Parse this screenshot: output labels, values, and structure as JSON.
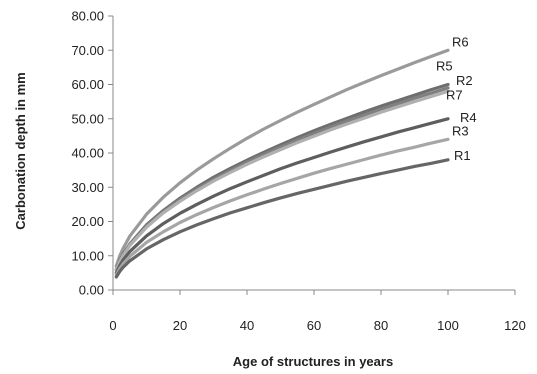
{
  "chart_data": {
    "type": "line",
    "title": "",
    "xlabel": "Age of structures in years",
    "ylabel": "Carbonation depth in mm",
    "xlim": [
      0,
      120
    ],
    "ylim": [
      0,
      80
    ],
    "x_ticks": [
      "0",
      "20",
      "40",
      "60",
      "80",
      "100",
      "120"
    ],
    "y_ticks": [
      "0.00",
      "10.00",
      "20.00",
      "30.00",
      "40.00",
      "50.00",
      "60.00",
      "70.00",
      "80.00"
    ],
    "grid": false,
    "legend": "none",
    "x": [
      1,
      2,
      3,
      5,
      10,
      15,
      20,
      25,
      30,
      35,
      40,
      45,
      50,
      55,
      60,
      65,
      70,
      75,
      80,
      85,
      90,
      95,
      100
    ],
    "series": [
      {
        "name": "R6",
        "color": "#9a9a9a",
        "values": [
          7.0,
          9.9,
          12.1,
          15.7,
          22.1,
          27.1,
          31.3,
          35.0,
          38.3,
          41.4,
          44.3,
          47.0,
          49.5,
          51.9,
          54.2,
          56.4,
          58.6,
          60.6,
          62.6,
          64.5,
          66.4,
          68.2,
          70.0
        ]
      },
      {
        "name": "R5",
        "color": "#6e6e6e",
        "values": [
          6.0,
          8.5,
          10.4,
          13.4,
          19.0,
          23.2,
          26.8,
          30.0,
          32.9,
          35.5,
          37.9,
          40.2,
          42.4,
          44.5,
          46.5,
          48.4,
          50.2,
          52.0,
          53.7,
          55.3,
          56.9,
          58.5,
          60.0
        ]
      },
      {
        "name": "R2",
        "color": "#808080",
        "values": [
          5.9,
          8.3,
          10.2,
          13.2,
          18.7,
          22.9,
          26.4,
          29.5,
          32.3,
          34.9,
          37.3,
          39.6,
          41.7,
          43.8,
          45.7,
          47.6,
          49.4,
          51.1,
          52.8,
          54.4,
          56.0,
          57.5,
          59.0
        ]
      },
      {
        "name": "R7",
        "color": "#b0b0b0",
        "values": [
          5.8,
          8.2,
          10.0,
          13.0,
          18.3,
          22.5,
          25.9,
          29.0,
          31.8,
          34.3,
          36.7,
          38.9,
          41.0,
          43.0,
          44.9,
          46.8,
          48.5,
          50.2,
          51.9,
          53.5,
          55.0,
          56.5,
          58.0
        ]
      },
      {
        "name": "R4",
        "color": "#5e5e5e",
        "values": [
          5.0,
          7.1,
          8.7,
          11.2,
          15.8,
          19.4,
          22.4,
          25.0,
          27.4,
          29.6,
          31.6,
          33.5,
          35.4,
          37.1,
          38.7,
          40.3,
          41.8,
          43.3,
          44.7,
          46.1,
          47.4,
          48.7,
          50.0
        ]
      },
      {
        "name": "R3",
        "color": "#a6a6a6",
        "values": [
          4.4,
          6.2,
          7.6,
          9.8,
          13.9,
          17.0,
          19.7,
          22.0,
          24.1,
          26.0,
          27.8,
          29.5,
          31.1,
          32.6,
          34.1,
          35.5,
          36.8,
          38.1,
          39.4,
          40.6,
          41.7,
          42.9,
          44.0
        ]
      },
      {
        "name": "R1",
        "color": "#666666",
        "values": [
          3.8,
          5.4,
          6.6,
          8.5,
          12.0,
          14.7,
          17.0,
          19.0,
          20.8,
          22.5,
          24.0,
          25.5,
          26.9,
          28.2,
          29.4,
          30.6,
          31.8,
          32.9,
          34.0,
          35.0,
          36.1,
          37.0,
          38.0
        ]
      }
    ]
  }
}
